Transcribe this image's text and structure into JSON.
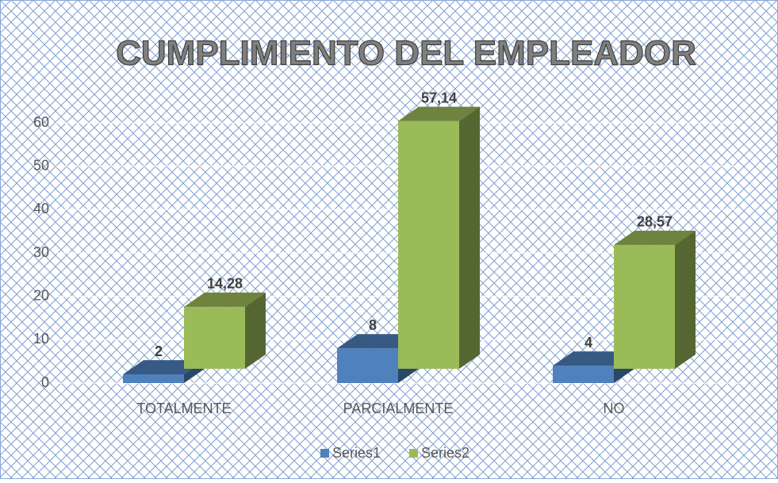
{
  "chart_data": {
    "type": "bar3d",
    "title": "CUMPLIMIENTO DEL EMPLEADOR",
    "categories": [
      "TOTALMENTE",
      "PARCIALMENTE",
      "NO"
    ],
    "series": [
      {
        "name": "Series1",
        "color": "#4f81bd",
        "values": [
          2,
          8,
          4
        ]
      },
      {
        "name": "Series2",
        "color": "#9bbb59",
        "values": [
          14.28,
          57.14,
          28.57
        ],
        "value_labels": [
          "14,28",
          "57,14",
          "28,57"
        ]
      }
    ],
    "ylim": [
      0,
      60
    ],
    "yticks": [
      0,
      10,
      20,
      30,
      40,
      50,
      60
    ],
    "grid": true,
    "legend": "bottom"
  }
}
